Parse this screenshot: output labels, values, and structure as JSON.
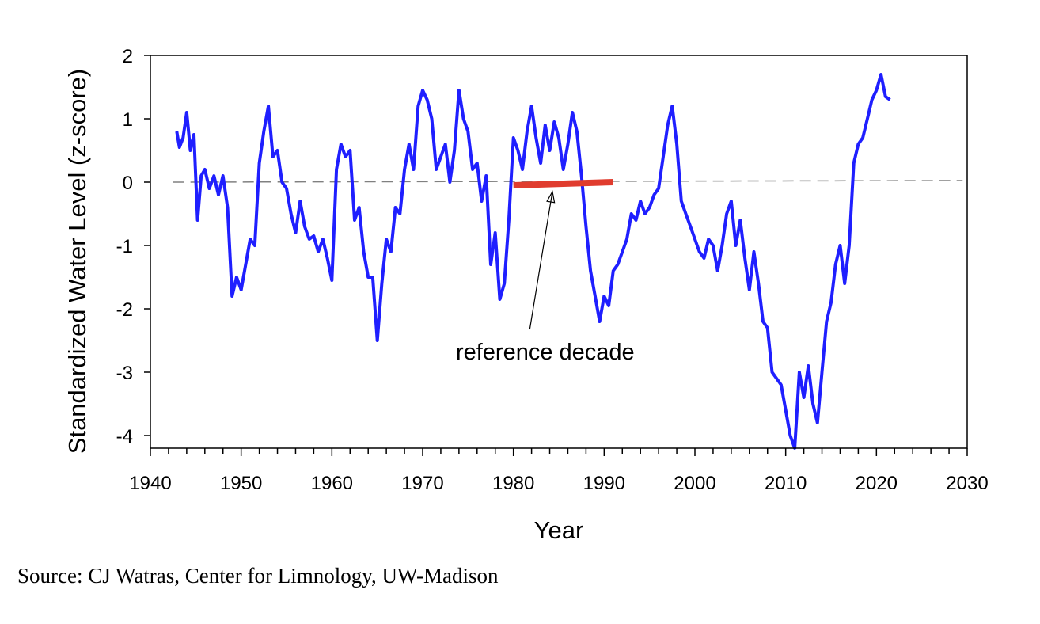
{
  "chart_data": {
    "type": "line",
    "title": "",
    "xlabel": "Year",
    "ylabel": "Standardized Water Level (z-score)",
    "xlim": [
      1940,
      2030
    ],
    "ylim": [
      -4.2,
      2
    ],
    "xticks": [
      1940,
      1950,
      1960,
      1970,
      1980,
      1990,
      2000,
      2010,
      2020,
      2030
    ],
    "yticks": [
      -4,
      -3,
      -2,
      -1,
      0,
      1,
      2
    ],
    "grid": false,
    "legend": "none",
    "series": [
      {
        "color": "#1f1fff",
        "x": [
          1942.9,
          1943.2,
          1943.6,
          1944.0,
          1944.4,
          1944.8,
          1945.2,
          1945.6,
          1946.0,
          1946.5,
          1947.0,
          1947.5,
          1948.0,
          1948.5,
          1949.0,
          1949.5,
          1950.0,
          1950.5,
          1951.0,
          1951.5,
          1952.0,
          1952.5,
          1953.0,
          1953.5,
          1954.0,
          1954.5,
          1955.0,
          1955.5,
          1956.0,
          1956.5,
          1957.0,
          1957.5,
          1958.0,
          1958.5,
          1959.0,
          1959.5,
          1960.0,
          1960.5,
          1961.0,
          1961.5,
          1962.0,
          1962.5,
          1963.0,
          1963.5,
          1964.0,
          1964.5,
          1965.0,
          1965.5,
          1966.0,
          1966.5,
          1967.0,
          1967.5,
          1968.0,
          1968.5,
          1969.0,
          1969.5,
          1970.0,
          1970.5,
          1971.0,
          1971.5,
          1972.0,
          1972.5,
          1973.0,
          1973.5,
          1974.0,
          1974.5,
          1975.0,
          1975.5,
          1976.0,
          1976.5,
          1977.0,
          1977.5,
          1978.0,
          1978.5,
          1979.0,
          1979.5,
          1980.0,
          1980.5,
          1981.0,
          1981.5,
          1982.0,
          1982.5,
          1983.0,
          1983.5,
          1984.0,
          1984.5,
          1985.0,
          1985.5,
          1986.0,
          1986.5,
          1987.0,
          1987.5,
          1988.0,
          1988.5,
          1989.0,
          1989.5,
          1990.0,
          1990.5,
          1991.0,
          1991.5,
          1992.0,
          1992.5,
          1993.0,
          1993.5,
          1994.0,
          1994.5,
          1995.0,
          1995.5,
          1996.0,
          1996.5,
          1997.0,
          1997.5,
          1998.0,
          1998.5,
          1999.0,
          1999.5,
          2000.0,
          2000.5,
          2001.0,
          2001.5,
          2002.0,
          2002.5,
          2003.0,
          2003.5,
          2004.0,
          2004.5,
          2005.0,
          2005.5,
          2006.0,
          2006.5,
          2007.0,
          2007.5,
          2008.0,
          2008.5,
          2009.0,
          2009.5,
          2010.0,
          2010.5,
          2011.0,
          2011.5,
          2012.0,
          2012.5,
          2013.0,
          2013.5,
          2014.0,
          2014.5,
          2015.0,
          2015.5,
          2016.0,
          2016.5,
          2017.0,
          2017.5,
          2018.0,
          2018.5,
          2019.0,
          2019.5,
          2020.0,
          2020.5,
          2021.0,
          2021.5
        ],
        "y": [
          0.8,
          0.55,
          0.7,
          1.1,
          0.5,
          0.75,
          -0.6,
          0.1,
          0.2,
          -0.1,
          0.1,
          -0.2,
          0.1,
          -0.4,
          -1.8,
          -1.5,
          -1.7,
          -1.3,
          -0.9,
          -1.0,
          0.3,
          0.8,
          1.2,
          0.4,
          0.5,
          0.0,
          -0.1,
          -0.5,
          -0.8,
          -0.3,
          -0.7,
          -0.9,
          -0.85,
          -1.1,
          -0.9,
          -1.2,
          -1.55,
          0.2,
          0.6,
          0.4,
          0.5,
          -0.6,
          -0.4,
          -1.1,
          -1.5,
          -1.5,
          -2.5,
          -1.6,
          -0.9,
          -1.1,
          -0.4,
          -0.5,
          0.2,
          0.6,
          0.2,
          1.2,
          1.45,
          1.3,
          1.0,
          0.2,
          0.4,
          0.6,
          0.0,
          0.5,
          1.45,
          1.0,
          0.8,
          0.2,
          0.3,
          -0.3,
          0.1,
          -1.3,
          -0.8,
          -1.85,
          -1.6,
          -0.6,
          0.7,
          0.5,
          0.2,
          0.8,
          1.2,
          0.7,
          0.3,
          0.9,
          0.5,
          0.95,
          0.7,
          0.2,
          0.6,
          1.1,
          0.8,
          0.1,
          -0.7,
          -1.4,
          -1.8,
          -2.2,
          -1.8,
          -1.95,
          -1.4,
          -1.3,
          -1.1,
          -0.9,
          -0.5,
          -0.6,
          -0.3,
          -0.5,
          -0.4,
          -0.2,
          -0.1,
          0.4,
          0.9,
          1.2,
          0.6,
          -0.3,
          -0.5,
          -0.7,
          -0.9,
          -1.1,
          -1.2,
          -0.9,
          -1.0,
          -1.4,
          -1.0,
          -0.5,
          -0.3,
          -1.0,
          -0.6,
          -1.2,
          -1.7,
          -1.1,
          -1.6,
          -2.2,
          -2.3,
          -3.0,
          -3.1,
          -3.2,
          -3.6,
          -4.0,
          -4.2,
          -3.0,
          -3.4,
          -2.9,
          -3.5,
          -3.8,
          -3.0,
          -2.2,
          -1.9,
          -1.3,
          -1.0,
          -1.6,
          -1.0,
          0.3,
          0.6,
          0.7,
          1.0,
          1.3,
          1.45,
          1.7,
          1.35,
          1.3
        ]
      }
    ],
    "reference_line": {
      "y": 0
    },
    "reference_period": {
      "x": [
        1980,
        1991
      ],
      "y": [
        -0.05,
        0.0
      ],
      "color": "#e03c2e"
    },
    "annotations": [
      {
        "text": "reference decade",
        "x": 1983.5,
        "y": -2.8,
        "arrow_to": {
          "x": 1984.3,
          "y": -0.15
        }
      }
    ]
  },
  "source": "Source: CJ Watras, Center for Limnology, UW-Madison"
}
